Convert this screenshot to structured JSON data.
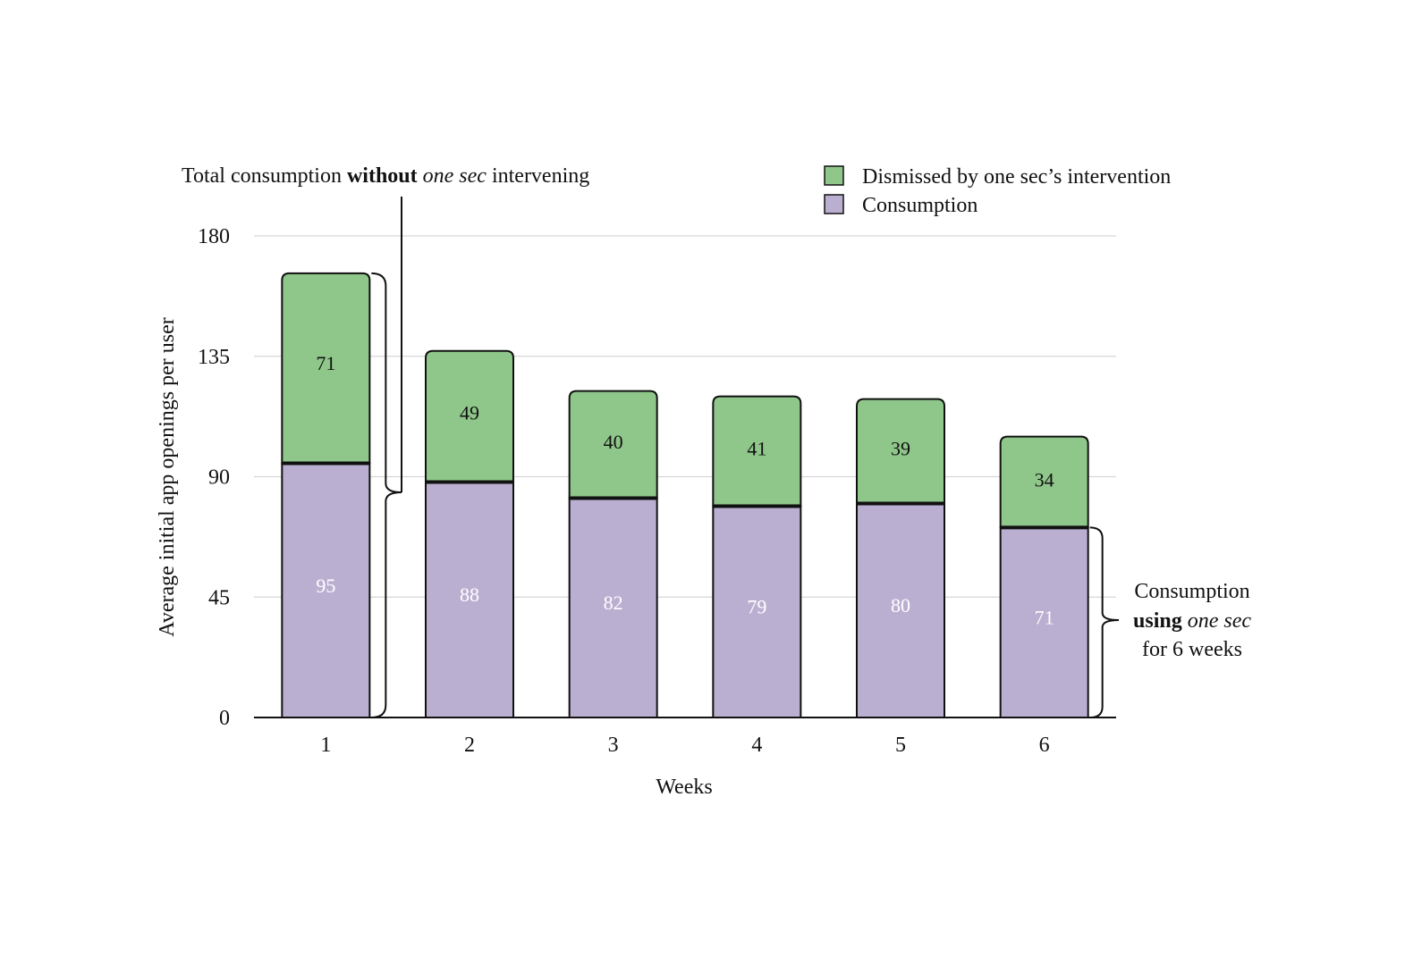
{
  "chart_data": {
    "type": "bar",
    "stacked": true,
    "categories": [
      "1",
      "2",
      "3",
      "4",
      "5",
      "6"
    ],
    "series": [
      {
        "name": "Consumption",
        "values": [
          95,
          88,
          82,
          79,
          80,
          71
        ],
        "color": "#bbafd1",
        "label_color": "#ffffff"
      },
      {
        "name": "Dismissed by one sec’s intervention",
        "values": [
          71,
          49,
          40,
          41,
          39,
          34
        ],
        "color": "#8fc78a",
        "label_color": "#111111"
      }
    ],
    "legend_order": [
      1,
      0
    ],
    "xlabel": "Weeks",
    "ylabel": "Average initial app openings per user",
    "ylim": [
      0,
      180
    ],
    "yticks": [
      0,
      45,
      90,
      135,
      180
    ],
    "grid": true,
    "legend_position": "top-right",
    "annotations": {
      "top_left": {
        "parts": [
          {
            "text": "Total consumption ",
            "style": "normal"
          },
          {
            "text": "without",
            "style": "bold"
          },
          {
            "text": " ",
            "style": "normal"
          },
          {
            "text": "one sec",
            "style": "italic"
          },
          {
            "text": " intervening",
            "style": "normal"
          }
        ]
      },
      "right": {
        "line1": "Consumption",
        "line2_bold": "using",
        "line2_italic": "one sec",
        "line3": "for 6 weeks"
      }
    }
  }
}
